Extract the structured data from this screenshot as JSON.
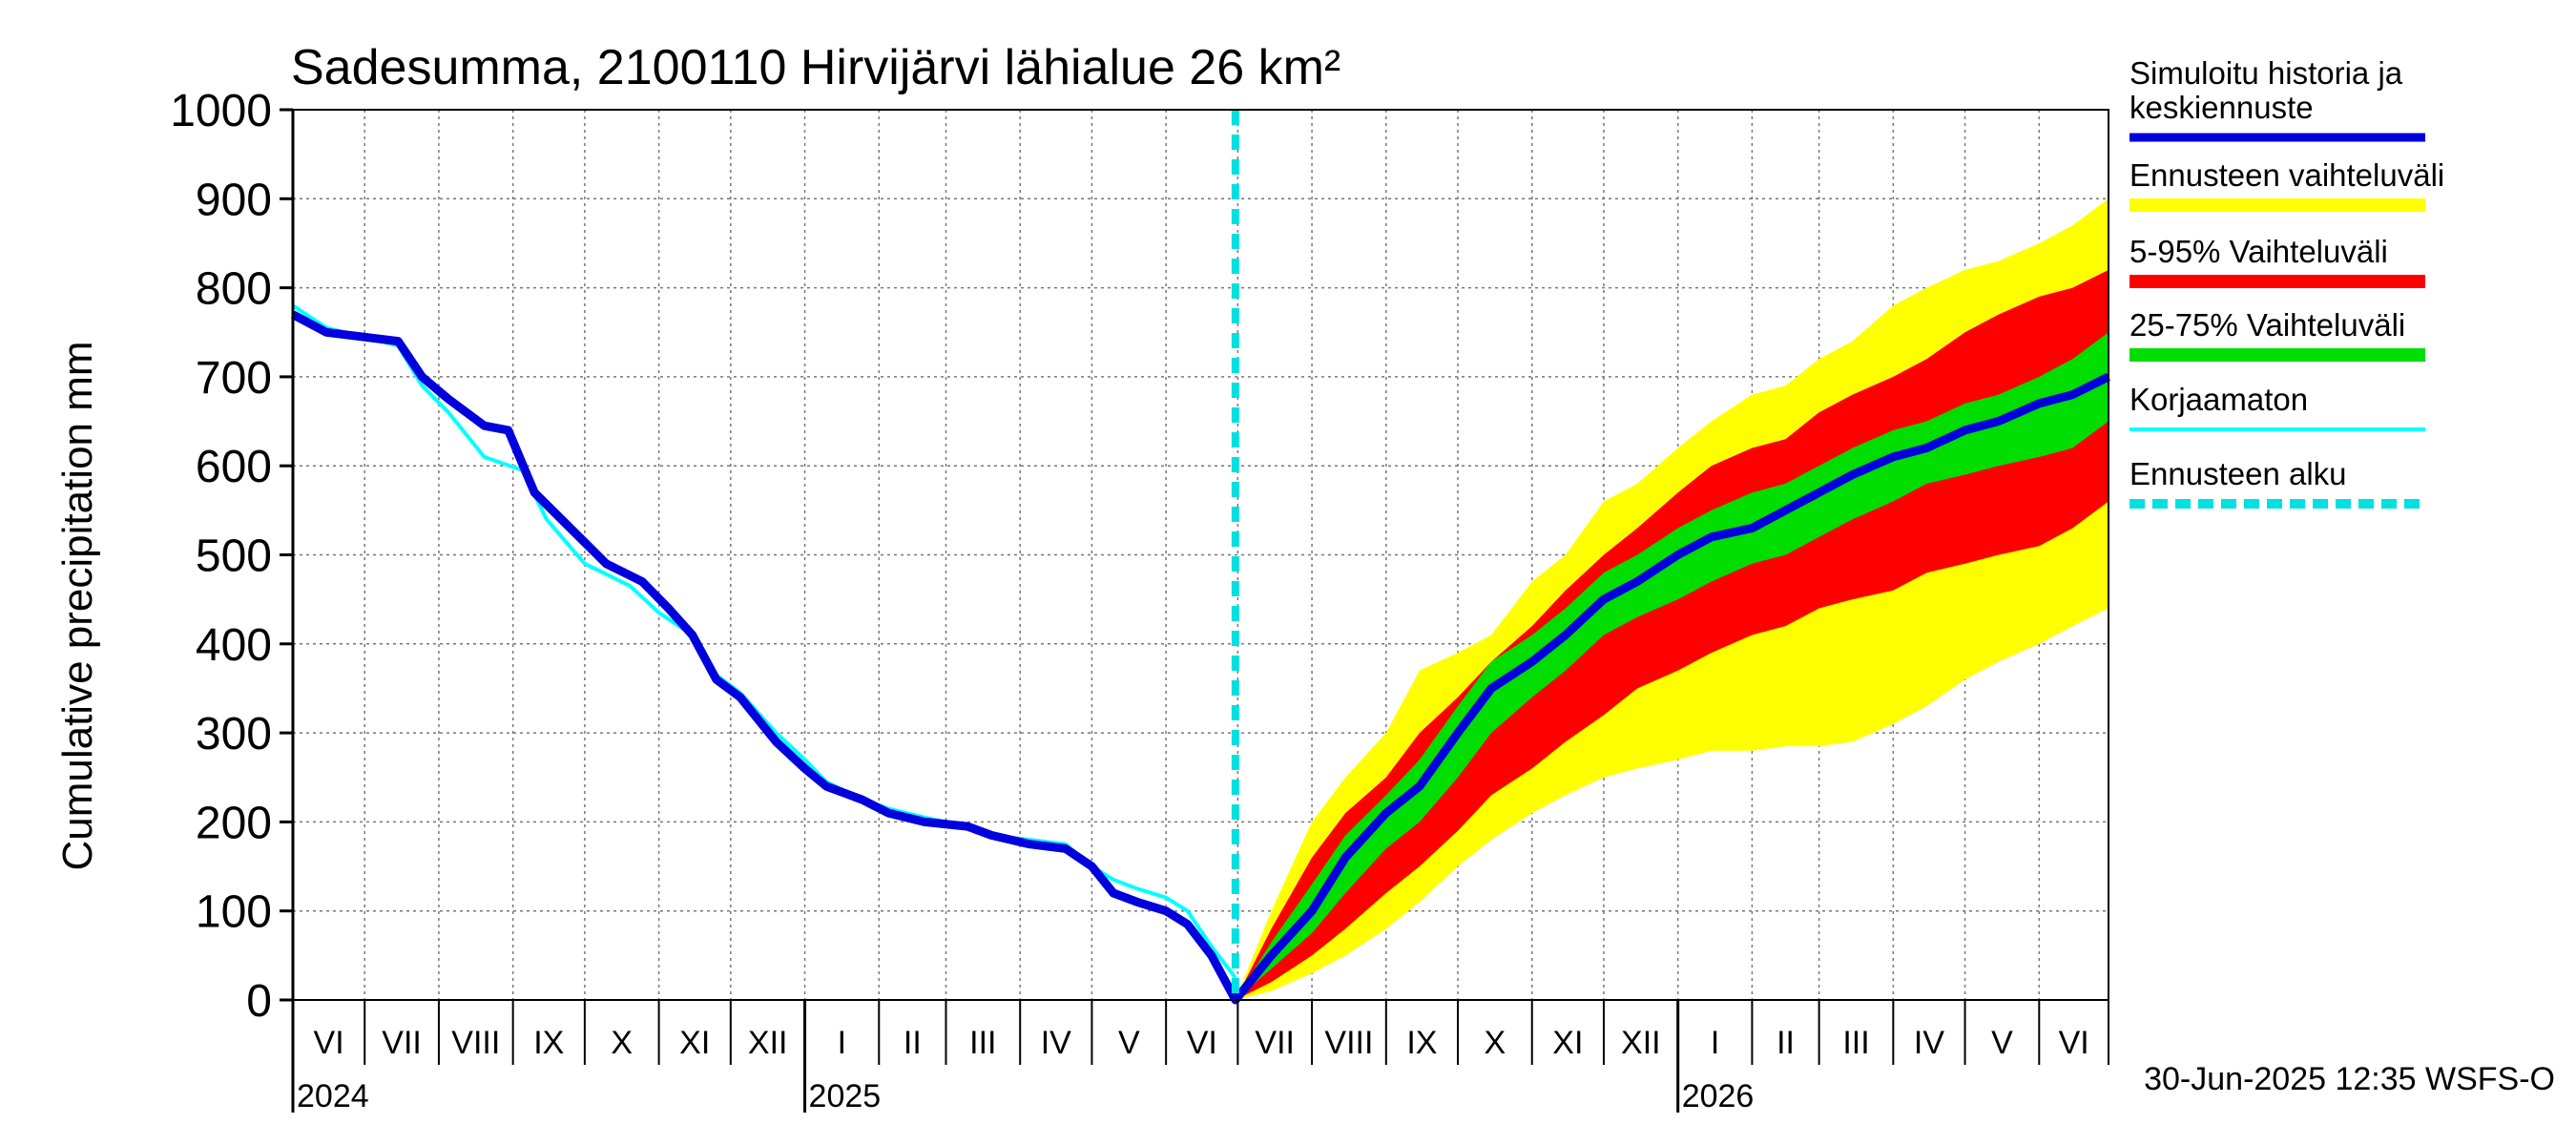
{
  "colors": {
    "history": "#0000dd",
    "range_full": "#ffff00",
    "range_5_95": "#ff0000",
    "range_25_75": "#00dd00",
    "uncorrected": "#00ffff",
    "forecast_start": "#00e0e0",
    "grid": "#777777"
  },
  "chart_data": {
    "type": "area",
    "title": "Sadesumma, 2100110 Hirvijärvi lähialue 26 km²",
    "ylabel": "Cumulative precipitation   mm",
    "xlabel": "",
    "ylim": [
      0,
      1000
    ],
    "xlim": [
      "2024-06-01",
      "2026-06-30"
    ],
    "y_ticks": [
      "0",
      "100",
      "200",
      "300",
      "400",
      "500",
      "600",
      "700",
      "800",
      "900",
      "1000"
    ],
    "grid": true,
    "legend_position": "right",
    "month_labels": [
      "VI",
      "VII",
      "VIII",
      "IX",
      "X",
      "XI",
      "XII",
      "I",
      "II",
      "III",
      "IV",
      "V",
      "VI",
      "VII",
      "VIII",
      "IX",
      "X",
      "XI",
      "XII",
      "I",
      "II",
      "III",
      "IV",
      "V",
      "VI"
    ],
    "year_labels": [
      {
        "label": "2024",
        "date": "2024-06-01"
      },
      {
        "label": "2025",
        "date": "2025-01-01"
      },
      {
        "label": "2026",
        "date": "2026-01-01"
      }
    ],
    "forecast_start_date": "2025-06-30",
    "series": [
      {
        "name": "Simuloitu historia ja keskiennuste",
        "x": [
          "2024-06-01",
          "2024-06-15",
          "2024-07-15",
          "2024-07-25",
          "2024-08-05",
          "2024-08-20",
          "2024-08-30",
          "2024-09-10",
          "2024-09-25",
          "2024-10-10",
          "2024-10-25",
          "2024-11-05",
          "2024-11-15",
          "2024-11-25",
          "2024-12-05",
          "2024-12-20",
          "2025-01-01",
          "2025-01-10",
          "2025-01-25",
          "2025-02-05",
          "2025-02-20",
          "2025-03-10",
          "2025-03-20",
          "2025-04-05",
          "2025-04-20",
          "2025-05-01",
          "2025-05-10",
          "2025-05-20",
          "2025-06-01",
          "2025-06-10",
          "2025-06-20",
          "2025-06-30",
          "2025-07-15",
          "2025-08-01",
          "2025-08-15",
          "2025-09-01",
          "2025-09-15",
          "2025-10-01",
          "2025-10-15",
          "2025-11-01",
          "2025-11-15",
          "2025-12-01",
          "2025-12-15",
          "2026-01-01",
          "2026-01-15",
          "2026-02-01",
          "2026-02-15",
          "2026-03-01",
          "2026-03-15",
          "2026-04-01",
          "2026-04-15",
          "2026-05-01",
          "2026-05-15",
          "2026-06-01",
          "2026-06-15",
          "2026-06-30"
        ],
        "y": [
          770,
          750,
          740,
          700,
          675,
          645,
          640,
          570,
          530,
          490,
          470,
          440,
          410,
          360,
          340,
          290,
          260,
          240,
          225,
          210,
          200,
          195,
          185,
          175,
          170,
          150,
          120,
          110,
          100,
          85,
          50,
          0,
          50,
          100,
          160,
          210,
          240,
          300,
          350,
          380,
          410,
          450,
          470,
          500,
          520,
          530,
          550,
          570,
          590,
          610,
          620,
          640,
          650,
          670,
          680,
          700
        ]
      },
      {
        "name": "Korjaamaton",
        "x": [
          "2024-06-01",
          "2024-06-15",
          "2024-07-15",
          "2024-07-25",
          "2024-08-05",
          "2024-08-20",
          "2024-09-05",
          "2024-09-15",
          "2024-10-01",
          "2024-10-20",
          "2024-11-01",
          "2024-11-15",
          "2024-11-25",
          "2024-12-05",
          "2024-12-20",
          "2025-01-01",
          "2025-01-10",
          "2025-01-25",
          "2025-02-05",
          "2025-02-20",
          "2025-03-10",
          "2025-03-20",
          "2025-04-05",
          "2025-04-20",
          "2025-05-01",
          "2025-05-10",
          "2025-05-20",
          "2025-06-01",
          "2025-06-10",
          "2025-06-20",
          "2025-06-30"
        ],
        "y": [
          780,
          755,
          735,
          690,
          660,
          610,
          595,
          540,
          490,
          465,
          435,
          410,
          365,
          345,
          300,
          270,
          245,
          225,
          215,
          205,
          195,
          185,
          180,
          175,
          150,
          135,
          125,
          115,
          100,
          60,
          25
        ]
      },
      {
        "name": "Ennusteen vaihteluväli",
        "x": [
          "2025-06-30",
          "2025-07-15",
          "2025-08-01",
          "2025-08-15",
          "2025-09-01",
          "2025-09-15",
          "2025-10-01",
          "2025-10-15",
          "2025-11-01",
          "2025-11-15",
          "2025-12-01",
          "2025-12-15",
          "2026-01-01",
          "2026-01-15",
          "2026-02-01",
          "2026-02-15",
          "2026-03-01",
          "2026-03-15",
          "2026-04-01",
          "2026-04-15",
          "2026-05-01",
          "2026-05-15",
          "2026-06-01",
          "2026-06-15",
          "2026-06-30"
        ],
        "lower": [
          0,
          10,
          30,
          50,
          80,
          110,
          150,
          180,
          210,
          230,
          250,
          260,
          270,
          280,
          280,
          285,
          285,
          290,
          310,
          330,
          360,
          380,
          400,
          420,
          440
        ],
        "upper": [
          0,
          100,
          200,
          250,
          300,
          370,
          390,
          410,
          470,
          500,
          560,
          580,
          620,
          650,
          680,
          690,
          720,
          740,
          780,
          800,
          820,
          830,
          850,
          870,
          900
        ]
      },
      {
        "name": "5-95% Vaihteluväli",
        "x": [
          "2025-06-30",
          "2025-07-15",
          "2025-08-01",
          "2025-08-15",
          "2025-09-01",
          "2025-09-15",
          "2025-10-01",
          "2025-10-15",
          "2025-11-01",
          "2025-11-15",
          "2025-12-01",
          "2025-12-15",
          "2026-01-01",
          "2026-01-15",
          "2026-02-01",
          "2026-02-15",
          "2026-03-01",
          "2026-03-15",
          "2026-04-01",
          "2026-04-15",
          "2026-05-01",
          "2026-05-15",
          "2026-06-01",
          "2026-06-15",
          "2026-06-30"
        ],
        "lower": [
          0,
          20,
          50,
          80,
          120,
          150,
          190,
          230,
          260,
          290,
          320,
          350,
          370,
          390,
          410,
          420,
          440,
          450,
          460,
          480,
          490,
          500,
          510,
          530,
          560
        ],
        "upper": [
          0,
          80,
          160,
          210,
          250,
          300,
          340,
          380,
          420,
          460,
          500,
          530,
          570,
          600,
          620,
          630,
          660,
          680,
          700,
          720,
          750,
          770,
          790,
          800,
          820
        ]
      },
      {
        "name": "25-75% Vaihteluväli",
        "x": [
          "2025-06-30",
          "2025-07-15",
          "2025-08-01",
          "2025-08-15",
          "2025-09-01",
          "2025-09-15",
          "2025-10-01",
          "2025-10-15",
          "2025-11-01",
          "2025-11-15",
          "2025-12-01",
          "2025-12-15",
          "2026-01-01",
          "2026-01-15",
          "2026-02-01",
          "2026-02-15",
          "2026-03-01",
          "2026-03-15",
          "2026-04-01",
          "2026-04-15",
          "2026-05-01",
          "2026-05-15",
          "2026-06-01",
          "2026-06-15",
          "2026-06-30"
        ],
        "lower": [
          0,
          35,
          75,
          120,
          170,
          200,
          250,
          300,
          340,
          370,
          410,
          430,
          450,
          470,
          490,
          500,
          520,
          540,
          560,
          580,
          590,
          600,
          610,
          620,
          650
        ],
        "upper": [
          0,
          65,
          130,
          185,
          230,
          270,
          330,
          380,
          410,
          440,
          480,
          500,
          530,
          550,
          570,
          580,
          600,
          620,
          640,
          650,
          670,
          680,
          700,
          720,
          750
        ]
      }
    ]
  },
  "legend": {
    "items": [
      {
        "label_lines": [
          "Simuloitu historia ja",
          "keskiennuste"
        ],
        "swatch": "history"
      },
      {
        "label_lines": [
          "Ennusteen vaihteluväli"
        ],
        "swatch": "range_full"
      },
      {
        "label_lines": [
          "5-95% Vaihteluväli"
        ],
        "swatch": "range_5_95"
      },
      {
        "label_lines": [
          "25-75% Vaihteluväli"
        ],
        "swatch": "range_25_75"
      },
      {
        "label_lines": [
          "Korjaamaton"
        ],
        "swatch": "uncorrected"
      },
      {
        "label_lines": [
          "Ennusteen alku"
        ],
        "swatch": "forecast_start"
      }
    ]
  },
  "footer": {
    "timestamp": "30-Jun-2025 12:35 WSFS-O"
  }
}
